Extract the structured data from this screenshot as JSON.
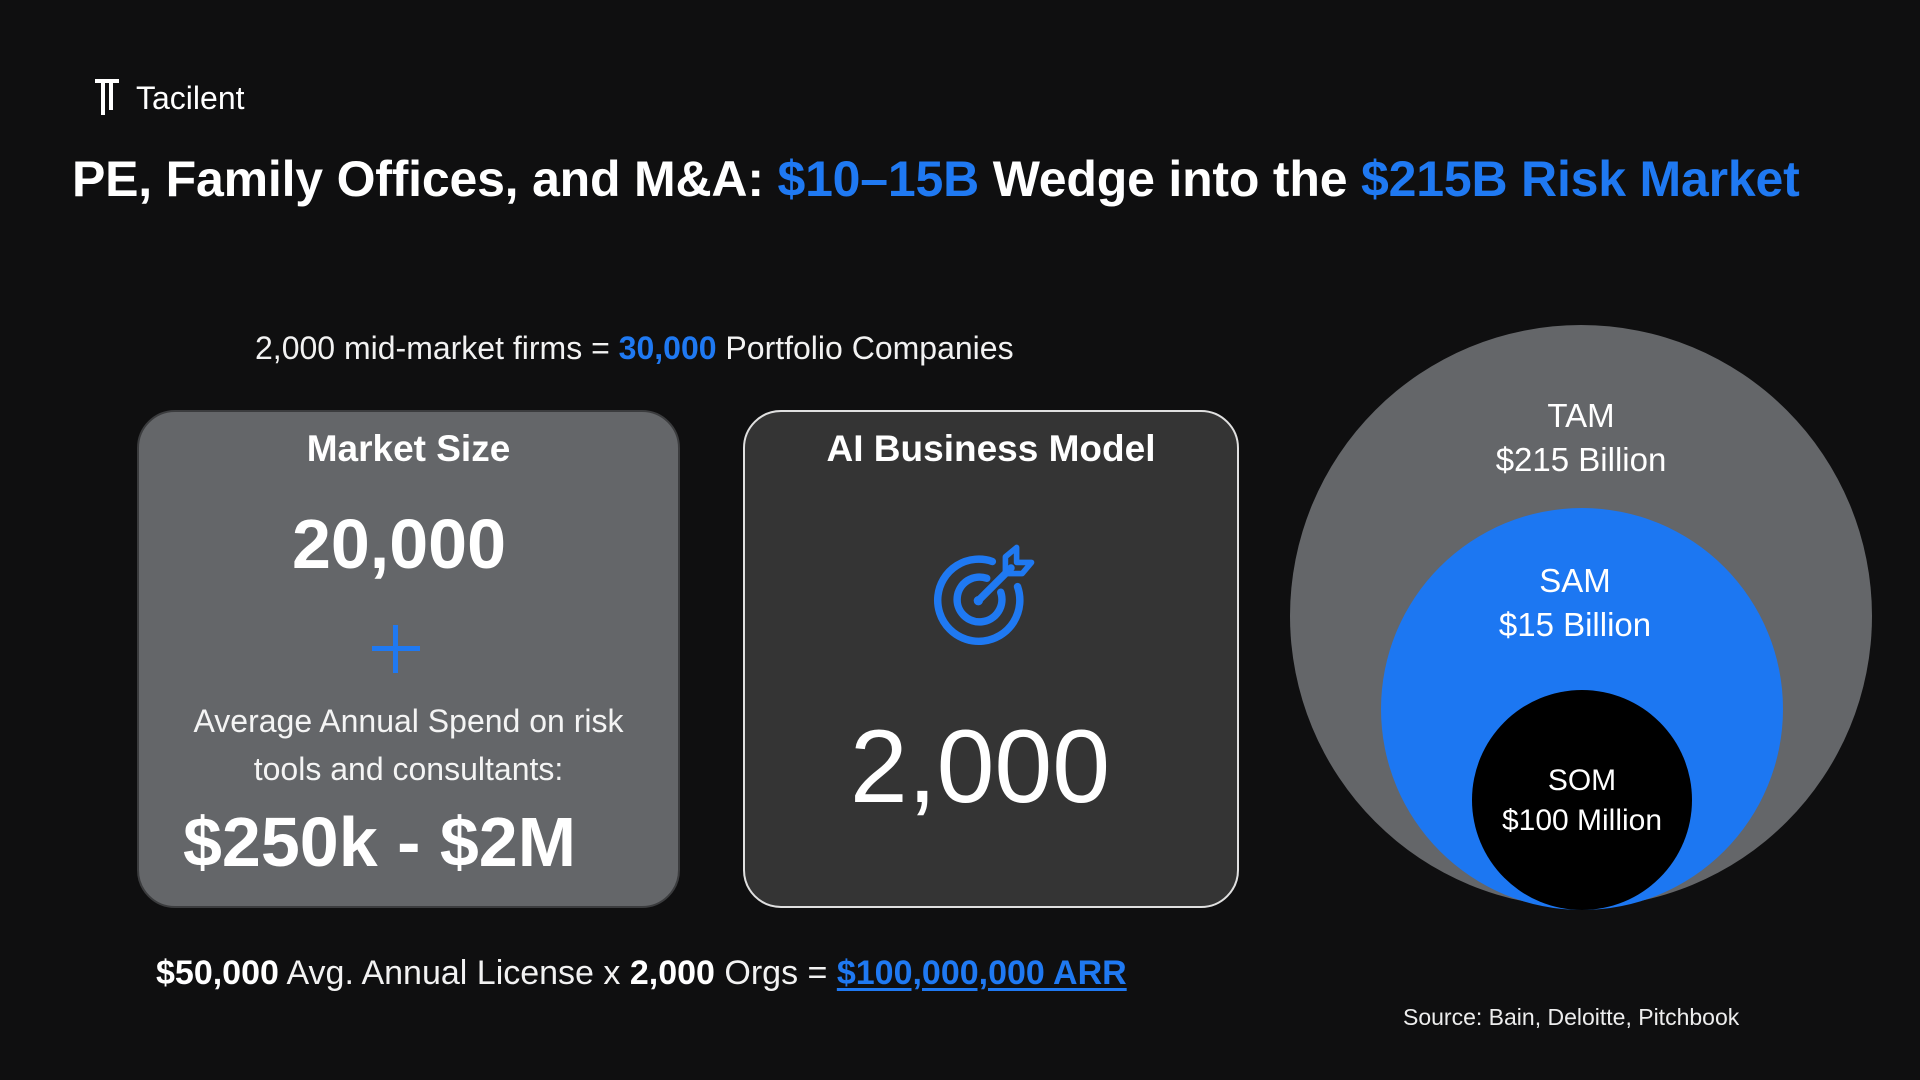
{
  "brand": {
    "name": "Tacilent"
  },
  "headline": {
    "part1": "PE, Family Offices, and M&A: ",
    "highlight1": "$10–15B",
    "part2": " Wedge into the ",
    "highlight2": "$215B Risk Market"
  },
  "firms_line": {
    "prefix": "2,000 mid-market firms = ",
    "highlight": "30,000",
    "suffix": " Portfolio Companies"
  },
  "market_card": {
    "title": "Market Size",
    "count": "20,000",
    "spend_line1": "Average Annual Spend on risk",
    "spend_line2": "tools and consultants:",
    "spend_range": "$250k - $2M"
  },
  "ai_card": {
    "title": "AI Business Model",
    "icon": "target-arrow-icon",
    "count": "2,000"
  },
  "market_circles": {
    "tam": {
      "label": "TAM",
      "value": "$215 Billion"
    },
    "sam": {
      "label": "SAM",
      "value": "$15 Billion"
    },
    "som": {
      "label": "SOM",
      "value": "$100 Million"
    }
  },
  "license_line": {
    "license_value": "$50,000",
    "license_text": " Avg. Annual License x ",
    "orgs_value": "2,000",
    "orgs_text": " Orgs = ",
    "arr": "$100,000,000 ARR"
  },
  "source": "Source: Bain, Deloitte, Pitchbook",
  "colors": {
    "background": "#0f0f10",
    "accent_blue": "#1f79f2",
    "card_gray": "#646669",
    "card_dark": "#343434",
    "som_black": "#000000"
  }
}
